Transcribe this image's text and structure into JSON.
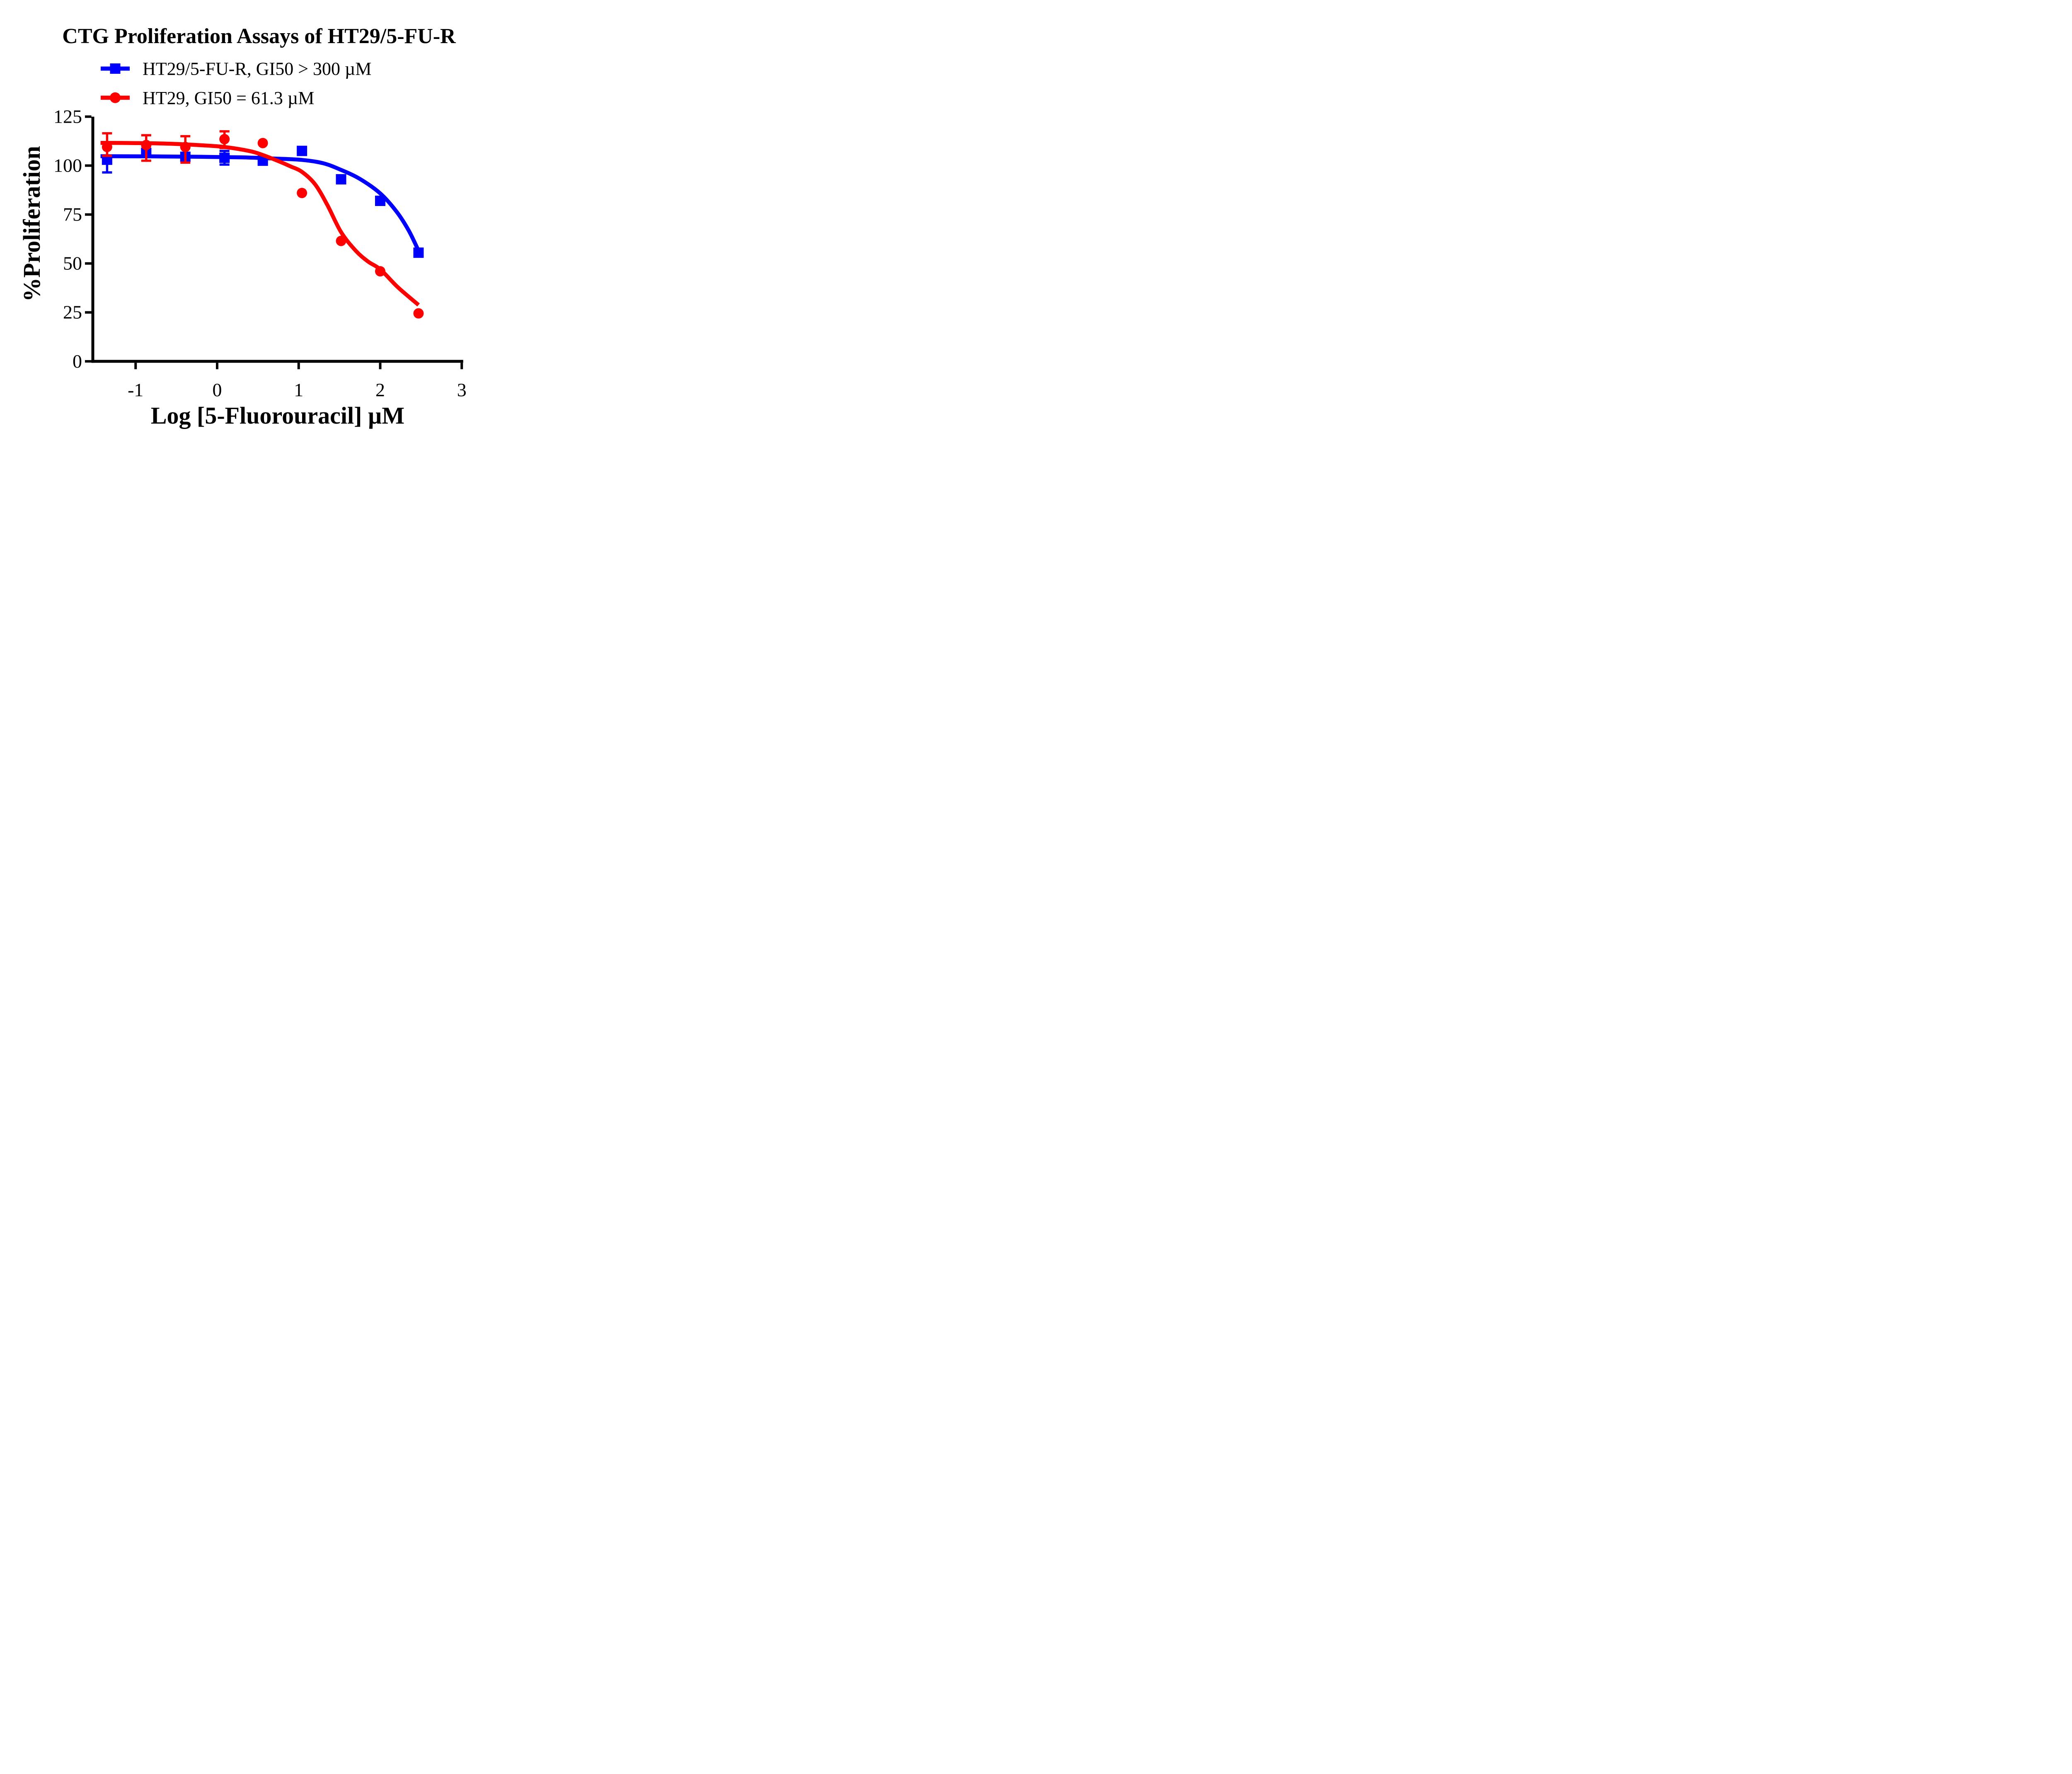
{
  "title": "CTG Proliferation Assays of HT29/5-FU-R",
  "legend": {
    "items": [
      {
        "label": "HT29/5-FU-R, GI50 > 300 µM",
        "marker": "square",
        "color": "#0000FF"
      },
      {
        "label": "HT29, GI50 = 61.3 µM",
        "marker": "circle",
        "color": "#FF0000"
      }
    ]
  },
  "chart_data": {
    "type": "scatter",
    "subtype": "dose-response-fit",
    "title": "CTG Proliferation Assays of HT29/5-FU-R",
    "xlabel": "Log [5-Fluorouracil] µM",
    "ylabel": "%Proliferation",
    "xlim": [
      -1.55,
      3
    ],
    "ylim": [
      0,
      125
    ],
    "x_ticks": [
      -1,
      0,
      1,
      2,
      3
    ],
    "y_ticks": [
      0,
      25,
      50,
      75,
      100,
      125
    ],
    "grid": false,
    "legend_position": "top-left-above-plot",
    "x": [
      -1.35,
      -0.87,
      -0.39,
      0.09,
      0.56,
      1.04,
      1.52,
      2.0,
      2.47
    ],
    "series": [
      {
        "name": "HT29/5-FU-R",
        "legend_label": "HT29/5-FU-R, GI50 > 300 µM",
        "gi50": "> 300 µM",
        "color": "#0000FF",
        "marker": "square",
        "values": [
          103,
          106.5,
          104.5,
          104,
          102.5,
          107.5,
          93,
          82,
          55.5
        ],
        "err_plus": [
          6.5,
          0,
          0,
          3.5,
          0,
          0,
          0,
          0,
          0
        ],
        "err_minus": [
          6.5,
          0,
          0,
          3.5,
          0,
          0,
          0,
          0,
          0
        ],
        "fit_curve": [
          [
            -1.43,
            104.8
          ],
          [
            -0.8,
            104.7
          ],
          [
            -0.2,
            104.5
          ],
          [
            0.3,
            104.2
          ],
          [
            0.7,
            103.6
          ],
          [
            1.04,
            102.9
          ],
          [
            1.3,
            101.2
          ],
          [
            1.52,
            97.8
          ],
          [
            1.75,
            93.2
          ],
          [
            2.0,
            85.8
          ],
          [
            2.2,
            76.5
          ],
          [
            2.35,
            66.8
          ],
          [
            2.47,
            56.5
          ]
        ]
      },
      {
        "name": "HT29",
        "legend_label": "HT29, GI50 = 61.3 µM",
        "gi50": "61.3 µM",
        "color": "#FF0000",
        "marker": "circle",
        "values": [
          109.5,
          110.5,
          109.5,
          113.5,
          111.5,
          86,
          61.5,
          46,
          24.5
        ],
        "err_plus": [
          7,
          5,
          5.5,
          4,
          0,
          0,
          0,
          0,
          0
        ],
        "err_minus": [
          4.5,
          8,
          8,
          4.5,
          0,
          0,
          0,
          0,
          0
        ],
        "fit_curve": [
          [
            -1.43,
            111.6
          ],
          [
            -1.0,
            111.5
          ],
          [
            -0.6,
            111.2
          ],
          [
            -0.2,
            110.4
          ],
          [
            0.09,
            109.5
          ],
          [
            0.4,
            107.4
          ],
          [
            0.56,
            105.4
          ],
          [
            0.75,
            102.3
          ],
          [
            0.9,
            99.6
          ],
          [
            1.04,
            96.8
          ],
          [
            1.2,
            90.5
          ],
          [
            1.35,
            80
          ],
          [
            1.52,
            66
          ],
          [
            1.7,
            56.5
          ],
          [
            1.85,
            51
          ],
          [
            2.0,
            47
          ],
          [
            2.2,
            38.5
          ],
          [
            2.35,
            33
          ],
          [
            2.47,
            28.8
          ]
        ]
      }
    ]
  }
}
